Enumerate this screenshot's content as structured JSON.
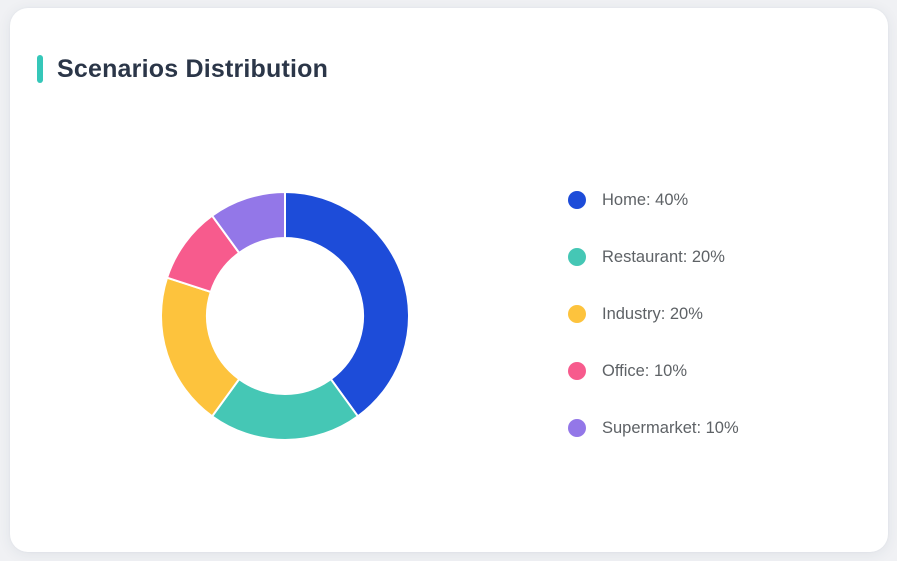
{
  "card": {
    "title": "Scenarios Distribution",
    "accent_color": "#35c7b9"
  },
  "chart_data": {
    "type": "pie",
    "title": "Scenarios Distribution",
    "donut": true,
    "start_angle_deg": 0,
    "direction": "clockwise",
    "outer_radius_px": 124,
    "inner_radius_px": 78,
    "segment_gap_color": "#ffffff",
    "legend_position": "right",
    "series": [
      {
        "label": "Home",
        "value": 40,
        "color": "#1d4cd9"
      },
      {
        "label": "Restaurant",
        "value": 20,
        "color": "#45c7b5"
      },
      {
        "label": "Industry",
        "value": 20,
        "color": "#fdc33d"
      },
      {
        "label": "Office",
        "value": 10,
        "color": "#f75b8d"
      },
      {
        "label": "Supermarket",
        "value": 10,
        "color": "#9377e8"
      }
    ],
    "legend_items": [
      "Home: 40%",
      "Restaurant: 20%",
      "Industry: 20%",
      "Office: 10%",
      "Supermarket: 10%"
    ]
  }
}
